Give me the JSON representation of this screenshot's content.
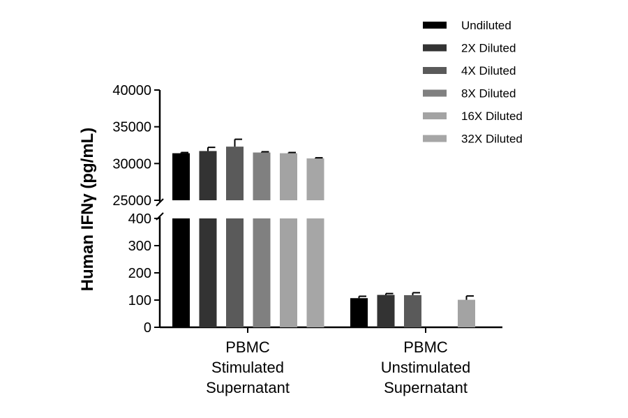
{
  "chart_data": {
    "type": "bar",
    "title": "",
    "ylabel": "Human IFNγ (pg/mL)",
    "xlabel": "",
    "axis_break": true,
    "ylim_lower": [
      0,
      400
    ],
    "ylim_upper": [
      25000,
      40000
    ],
    "yticks_lower": [
      "0",
      "100",
      "200",
      "300",
      "400"
    ],
    "yticks_upper": [
      "25000",
      "30000",
      "35000",
      "40000"
    ],
    "categories": [
      [
        "PBMC",
        "Stimulated",
        "Supernatant"
      ],
      [
        "PBMC",
        "Unstimulated",
        "Supernatant"
      ]
    ],
    "legend_position": "top-right",
    "series": [
      {
        "name": "Undiluted",
        "color": "#000000",
        "values": [
          31400,
          107
        ],
        "errors": [
          100,
          7
        ]
      },
      {
        "name": "2X Diluted",
        "color": "#333333",
        "values": [
          31700,
          119
        ],
        "errors": [
          500,
          5
        ]
      },
      {
        "name": "4X Diluted",
        "color": "#5a5a5a",
        "values": [
          32300,
          118
        ],
        "errors": [
          1000,
          9
        ]
      },
      {
        "name": "8X Diluted",
        "color": "#808080",
        "values": [
          31500,
          null
        ],
        "errors": [
          100,
          null
        ]
      },
      {
        "name": "16X Diluted",
        "color": "#a3a3a3",
        "values": [
          31400,
          101
        ],
        "errors": [
          100,
          14
        ]
      },
      {
        "name": "32X Diluted",
        "color": "#a6a6a6",
        "values": [
          30700,
          null
        ],
        "errors": [
          80,
          null
        ]
      }
    ]
  }
}
